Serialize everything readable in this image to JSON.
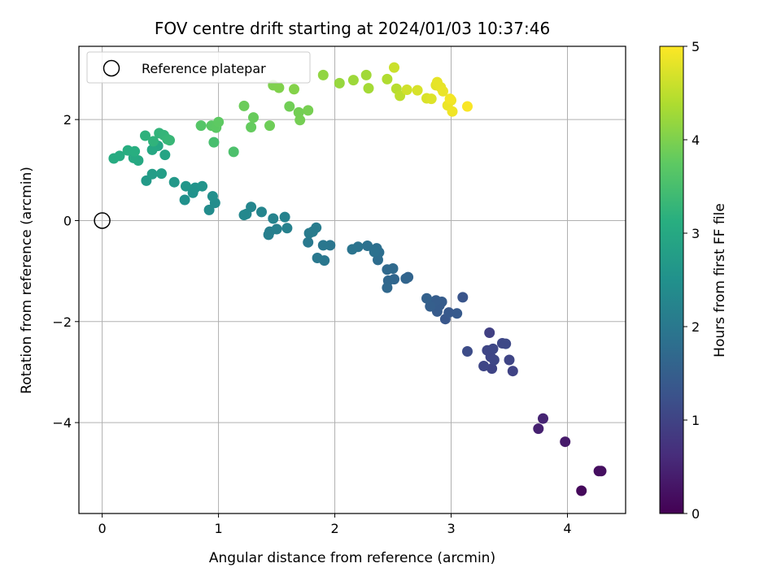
{
  "chart_data": {
    "type": "scatter",
    "title": "FOV centre drift starting at 2024/01/03 10:37:46",
    "xlabel": "Angular distance from reference (arcmin)",
    "ylabel": "Rotation from reference (arcmin)",
    "xlim": [
      -0.2,
      4.5
    ],
    "ylim": [
      -5.8,
      3.45
    ],
    "xticks": [
      0,
      1,
      2,
      3,
      4
    ],
    "xtick_labels": [
      "0",
      "1",
      "2",
      "3",
      "4"
    ],
    "yticks": [
      -4,
      -2,
      0,
      2
    ],
    "ytick_labels": [
      "−4",
      "−2",
      "0",
      "2"
    ],
    "grid": true,
    "legend": {
      "position": "top-left",
      "label": "Reference platepar"
    },
    "reference_point": {
      "x": 0,
      "y": 0
    },
    "colorbar": {
      "label": "Hours from first FF file",
      "colormap": "viridis",
      "range": [
        0,
        5
      ],
      "ticks": [
        0,
        1,
        2,
        3,
        4,
        5
      ],
      "tick_labels": [
        "0",
        "1",
        "2",
        "3",
        "4",
        "5"
      ]
    },
    "points": [
      [
        4.12,
        -5.35,
        0.12
      ],
      [
        4.27,
        -4.96,
        0.18
      ],
      [
        4.29,
        -4.96,
        0.2
      ],
      [
        3.98,
        -4.38,
        0.35
      ],
      [
        3.75,
        -4.12,
        0.45
      ],
      [
        3.79,
        -3.92,
        0.5
      ],
      [
        3.33,
        -2.22,
        0.95
      ],
      [
        3.53,
        -2.98,
        1.0
      ],
      [
        3.35,
        -2.93,
        1.02
      ],
      [
        3.5,
        -2.76,
        1.03
      ],
      [
        3.28,
        -2.88,
        1.04
      ],
      [
        3.34,
        -2.7,
        1.05
      ],
      [
        3.31,
        -2.57,
        1.05
      ],
      [
        3.37,
        -2.76,
        1.06
      ],
      [
        3.36,
        -2.54,
        1.07
      ],
      [
        3.44,
        -2.43,
        1.08
      ],
      [
        3.47,
        -2.44,
        1.09
      ],
      [
        3.14,
        -2.59,
        1.15
      ],
      [
        3.1,
        -1.52,
        1.3
      ],
      [
        2.95,
        -1.95,
        1.35
      ],
      [
        2.98,
        -1.82,
        1.38
      ],
      [
        3.05,
        -1.84,
        1.4
      ],
      [
        2.88,
        -1.8,
        1.42
      ],
      [
        2.9,
        -1.68,
        1.44
      ],
      [
        2.92,
        -1.61,
        1.45
      ],
      [
        2.87,
        -1.58,
        1.46
      ],
      [
        2.82,
        -1.7,
        1.5
      ],
      [
        2.79,
        -1.54,
        1.55
      ],
      [
        2.63,
        -1.12,
        1.6
      ],
      [
        2.61,
        -1.15,
        1.62
      ],
      [
        2.51,
        -1.16,
        1.65
      ],
      [
        2.46,
        -1.19,
        1.66
      ],
      [
        2.45,
        -1.33,
        1.67
      ],
      [
        2.45,
        -0.97,
        1.7
      ],
      [
        2.5,
        -0.95,
        1.72
      ],
      [
        2.37,
        -0.78,
        1.78
      ],
      [
        2.38,
        -0.63,
        1.8
      ],
      [
        2.36,
        -0.55,
        1.82
      ],
      [
        2.28,
        -0.5,
        1.85
      ],
      [
        2.34,
        -0.62,
        1.86
      ],
      [
        2.2,
        -0.52,
        1.9
      ],
      [
        2.15,
        -0.57,
        1.92
      ],
      [
        1.96,
        -0.49,
        1.95
      ],
      [
        1.9,
        -0.49,
        1.97
      ],
      [
        1.91,
        -0.79,
        1.98
      ],
      [
        1.85,
        -0.74,
        2.0
      ],
      [
        1.77,
        -0.43,
        2.02
      ],
      [
        1.78,
        -0.25,
        2.05
      ],
      [
        1.81,
        -0.22,
        2.07
      ],
      [
        1.84,
        -0.14,
        2.08
      ],
      [
        1.44,
        -0.22,
        2.12
      ],
      [
        1.43,
        -0.28,
        2.14
      ],
      [
        1.5,
        -0.17,
        2.15
      ],
      [
        1.59,
        -0.15,
        2.17
      ],
      [
        1.57,
        0.07,
        2.2
      ],
      [
        1.47,
        0.04,
        2.22
      ],
      [
        1.37,
        0.17,
        2.25
      ],
      [
        1.28,
        0.27,
        2.28
      ],
      [
        1.24,
        0.13,
        2.3
      ],
      [
        1.22,
        0.11,
        2.32
      ],
      [
        0.92,
        0.21,
        2.4
      ],
      [
        0.97,
        0.35,
        2.42
      ],
      [
        0.95,
        0.48,
        2.45
      ],
      [
        0.71,
        0.41,
        2.5
      ],
      [
        0.78,
        0.55,
        2.52
      ],
      [
        0.8,
        0.65,
        2.55
      ],
      [
        0.86,
        0.68,
        2.57
      ],
      [
        0.72,
        0.68,
        2.6
      ],
      [
        0.62,
        0.76,
        2.65
      ],
      [
        0.38,
        0.79,
        2.7
      ],
      [
        0.43,
        0.92,
        2.75
      ],
      [
        0.51,
        0.93,
        2.78
      ],
      [
        0.54,
        1.3,
        2.9
      ],
      [
        0.48,
        1.48,
        2.95
      ],
      [
        0.43,
        1.4,
        2.97
      ],
      [
        0.31,
        1.19,
        3.0
      ],
      [
        0.27,
        1.24,
        3.02
      ],
      [
        0.1,
        1.23,
        3.05
      ],
      [
        0.15,
        1.28,
        3.07
      ],
      [
        0.22,
        1.39,
        3.1
      ],
      [
        0.28,
        1.37,
        3.12
      ],
      [
        0.37,
        1.68,
        3.2
      ],
      [
        0.44,
        1.57,
        3.22
      ],
      [
        0.49,
        1.73,
        3.25
      ],
      [
        0.53,
        1.69,
        3.27
      ],
      [
        0.56,
        1.61,
        3.3
      ],
      [
        0.58,
        1.59,
        3.32
      ],
      [
        0.96,
        1.55,
        3.5
      ],
      [
        1.13,
        1.36,
        3.55
      ],
      [
        0.85,
        1.88,
        3.65
      ],
      [
        0.94,
        1.88,
        3.7
      ],
      [
        0.98,
        1.84,
        3.72
      ],
      [
        1.0,
        1.95,
        3.74
      ],
      [
        1.28,
        1.85,
        3.8
      ],
      [
        1.3,
        2.04,
        3.82
      ],
      [
        1.22,
        2.27,
        3.85
      ],
      [
        1.44,
        1.88,
        3.88
      ],
      [
        1.61,
        2.26,
        3.9
      ],
      [
        1.69,
        2.14,
        3.92
      ],
      [
        1.7,
        1.99,
        3.93
      ],
      [
        1.77,
        2.18,
        3.95
      ],
      [
        1.47,
        2.68,
        4.0
      ],
      [
        1.52,
        2.63,
        4.02
      ],
      [
        1.65,
        2.6,
        4.05
      ],
      [
        1.9,
        2.88,
        4.15
      ],
      [
        2.04,
        2.72,
        4.2
      ],
      [
        2.16,
        2.78,
        4.25
      ],
      [
        2.27,
        2.88,
        4.28
      ],
      [
        2.29,
        2.62,
        4.3
      ],
      [
        2.45,
        2.8,
        4.4
      ],
      [
        2.53,
        2.61,
        4.45
      ],
      [
        2.56,
        2.47,
        4.5
      ],
      [
        2.51,
        3.03,
        4.6
      ],
      [
        2.62,
        2.59,
        4.65
      ],
      [
        2.71,
        2.58,
        4.7
      ],
      [
        2.79,
        2.42,
        4.72
      ],
      [
        2.83,
        2.41,
        4.75
      ],
      [
        2.87,
        2.68,
        4.8
      ],
      [
        2.88,
        2.74,
        4.82
      ],
      [
        2.91,
        2.64,
        4.83
      ],
      [
        2.93,
        2.56,
        4.85
      ],
      [
        2.97,
        2.28,
        4.87
      ],
      [
        3.0,
        2.38,
        4.88
      ],
      [
        3.01,
        2.16,
        4.9
      ],
      [
        2.99,
        2.41,
        4.92
      ],
      [
        3.14,
        2.26,
        4.97
      ]
    ]
  }
}
